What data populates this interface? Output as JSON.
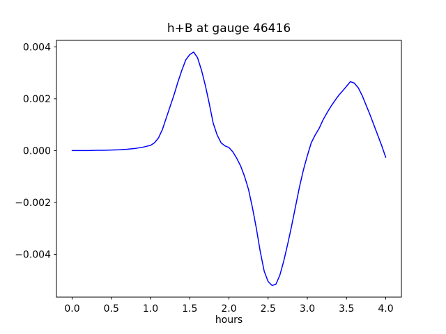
{
  "figure": {
    "background_color": "#ffffff",
    "frame_color": "#000000",
    "text_color": "#000000"
  },
  "chart_data": {
    "type": "line",
    "title": "h+B at gauge 46416",
    "xlabel": "hours",
    "ylabel": "",
    "grid": false,
    "legend": "none",
    "xlim": [
      -0.2,
      4.2
    ],
    "ylim": [
      -0.00565,
      0.00425
    ],
    "xticks": [
      0.0,
      0.5,
      1.0,
      1.5,
      2.0,
      2.5,
      3.0,
      3.5,
      4.0
    ],
    "xtick_labels": [
      "0.0",
      "0.5",
      "1.0",
      "1.5",
      "2.0",
      "2.5",
      "3.0",
      "3.5",
      "4.0"
    ],
    "yticks": [
      -0.004,
      -0.002,
      0.0,
      0.002,
      0.004
    ],
    "ytick_labels": [
      "−0.004",
      "−0.002",
      "0.000",
      "0.002",
      "0.004"
    ],
    "series": [
      {
        "name": "h+B",
        "color": "#0000ff",
        "line_width": 1.5,
        "x": [
          0.0,
          0.1,
          0.2,
          0.3,
          0.4,
          0.5,
          0.6,
          0.7,
          0.8,
          0.9,
          1.0,
          1.05,
          1.1,
          1.15,
          1.2,
          1.25,
          1.3,
          1.35,
          1.4,
          1.45,
          1.5,
          1.55,
          1.6,
          1.65,
          1.7,
          1.75,
          1.8,
          1.85,
          1.9,
          1.95,
          2.0,
          2.05,
          2.1,
          2.15,
          2.2,
          2.25,
          2.3,
          2.35,
          2.4,
          2.45,
          2.5,
          2.55,
          2.6,
          2.65,
          2.7,
          2.75,
          2.8,
          2.85,
          2.9,
          2.95,
          3.0,
          3.05,
          3.1,
          3.15,
          3.2,
          3.25,
          3.3,
          3.35,
          3.4,
          3.45,
          3.5,
          3.55,
          3.6,
          3.65,
          3.7,
          3.75,
          3.8,
          3.85,
          3.9,
          3.95,
          4.0
        ],
        "y": [
          0.0,
          0.0,
          0.0,
          1e-05,
          1e-05,
          2e-05,
          3e-05,
          5e-05,
          8e-05,
          0.00013,
          0.0002,
          0.0003,
          0.00048,
          0.0008,
          0.00125,
          0.0017,
          0.00215,
          0.00265,
          0.0031,
          0.0035,
          0.0037,
          0.0038,
          0.00358,
          0.0031,
          0.0025,
          0.0018,
          0.00105,
          0.0006,
          0.0003,
          0.00018,
          0.00012,
          -5e-05,
          -0.0003,
          -0.0006,
          -0.001,
          -0.0015,
          -0.0022,
          -0.003,
          -0.0039,
          -0.00465,
          -0.00505,
          -0.0052,
          -0.00515,
          -0.0048,
          -0.00425,
          -0.0036,
          -0.0029,
          -0.00215,
          -0.0014,
          -0.00075,
          -0.0002,
          0.0003,
          0.0006,
          0.00085,
          0.00118,
          0.00145,
          0.0017,
          0.00192,
          0.00213,
          0.0023,
          0.00248,
          0.00266,
          0.0026,
          0.00242,
          0.00212,
          0.00175,
          0.00138,
          0.00098,
          0.00058,
          0.00018,
          -0.00026
        ]
      }
    ]
  }
}
